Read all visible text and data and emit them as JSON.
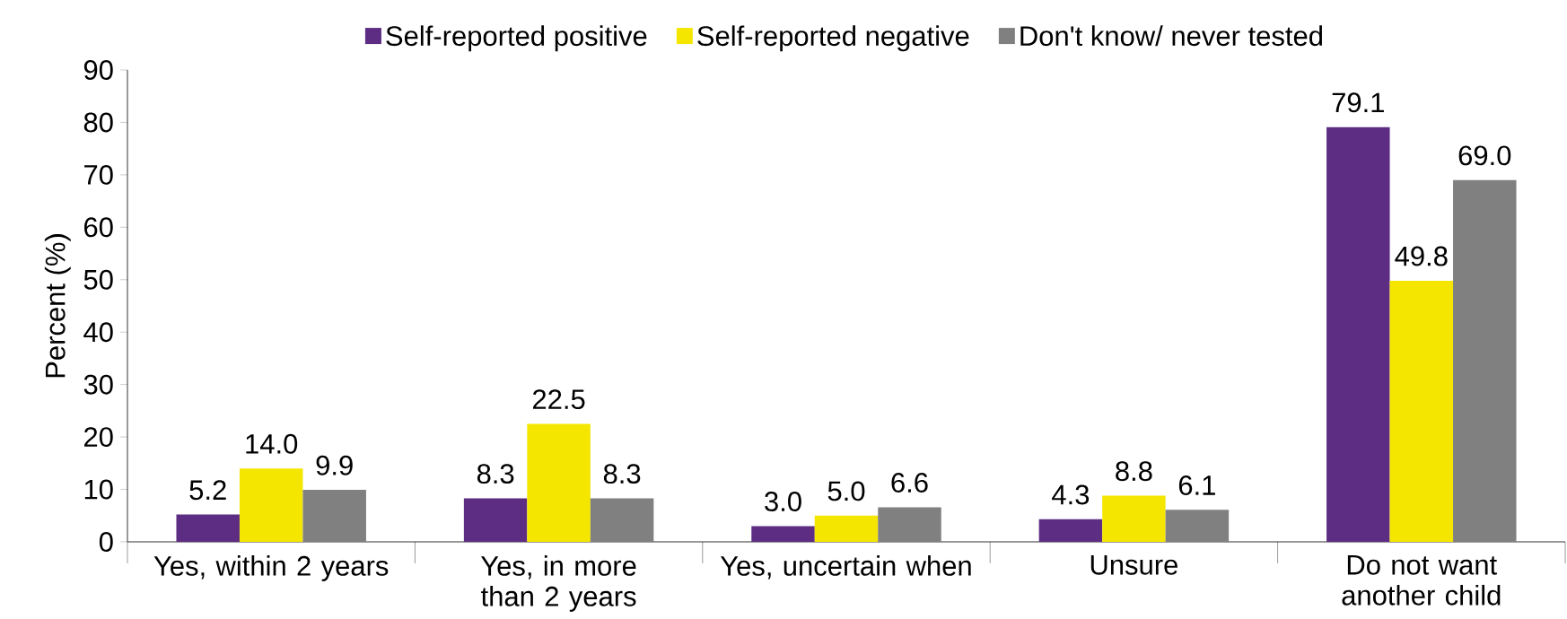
{
  "chart_data": {
    "type": "bar",
    "ylabel": "Percent (%)",
    "categories": [
      "Yes, within 2 years",
      "Yes, in more than 2 years",
      "Yes, uncertain when",
      "Unsure",
      "Do not want another child"
    ],
    "series": [
      {
        "name": "Self-reported positive",
        "color": "#5c2d83",
        "values": [
          5.2,
          8.3,
          3.0,
          4.3,
          79.1
        ],
        "value_labels": [
          "5.2",
          "8.3",
          "3.0",
          "4.3",
          "79.1"
        ]
      },
      {
        "name": "Self-reported negative",
        "color": "#f5e600",
        "values": [
          14.0,
          22.5,
          5.0,
          8.8,
          49.8
        ],
        "value_labels": [
          "14.0",
          "22.5",
          "5.0",
          "8.8",
          "49.8"
        ]
      },
      {
        "name": "Don't know/ never tested",
        "color": "#808080",
        "values": [
          9.9,
          8.3,
          6.6,
          6.1,
          69.0
        ],
        "value_labels": [
          "9.9",
          "8.3",
          "6.6",
          "6.1",
          "69.0"
        ]
      }
    ],
    "ylim": [
      0,
      90
    ],
    "yticks": [
      0,
      10,
      20,
      30,
      40,
      50,
      60,
      70,
      80,
      90
    ],
    "legend": "top",
    "grid": false
  }
}
